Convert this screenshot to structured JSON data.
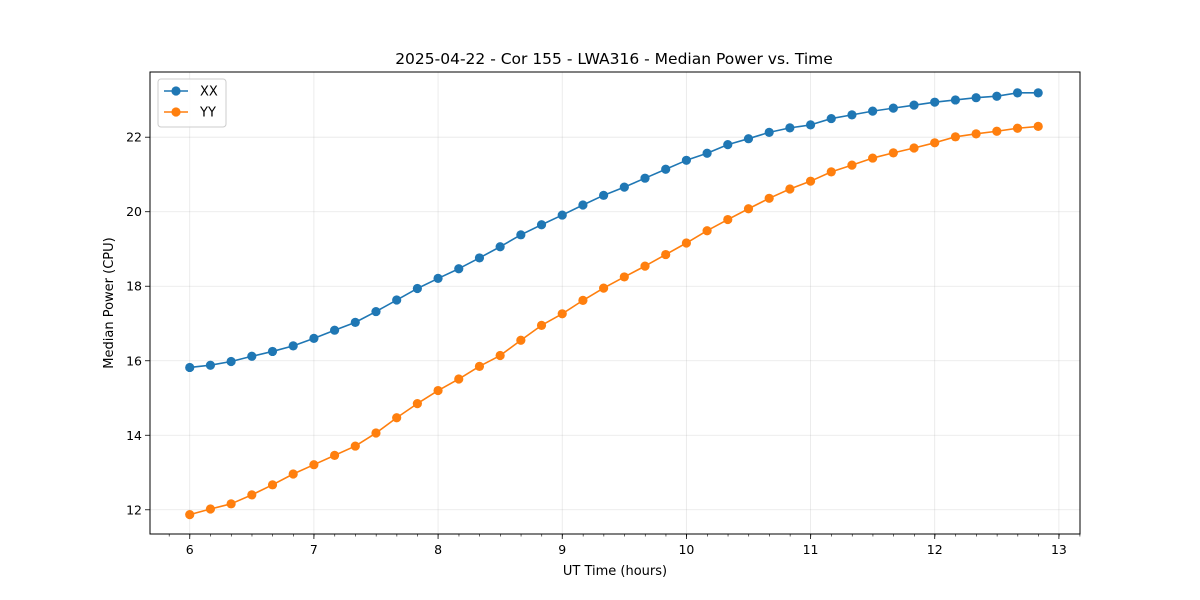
{
  "chart_data": {
    "type": "line",
    "title": "2025-04-22 - Cor 155 - LWA316 - Median Power vs. Time",
    "xlabel": "UT Time (hours)",
    "ylabel": "Median Power (CPU)",
    "xlim": [
      5.68,
      13.17
    ],
    "ylim": [
      11.35,
      23.75
    ],
    "xticks": [
      6,
      7,
      8,
      9,
      10,
      11,
      12,
      13
    ],
    "xticks_minor_step": 0.1667,
    "yticks": [
      12,
      14,
      16,
      18,
      20,
      22
    ],
    "grid": true,
    "legend_position": "top-left",
    "x": [
      6.0,
      6.1667,
      6.3333,
      6.5,
      6.6667,
      6.8333,
      7.0,
      7.1667,
      7.3333,
      7.5,
      7.6667,
      7.8333,
      8.0,
      8.1667,
      8.3333,
      8.5,
      8.6667,
      8.8333,
      9.0,
      9.1667,
      9.3333,
      9.5,
      9.6667,
      9.8333,
      10.0,
      10.1667,
      10.3333,
      10.5,
      10.6667,
      10.8333,
      11.0,
      11.1667,
      11.3333,
      11.5,
      11.6667,
      11.8333,
      12.0,
      12.1667,
      12.3333,
      12.5,
      12.6667,
      12.8333
    ],
    "series": [
      {
        "name": "XX",
        "color": "#1f77b4",
        "values": [
          15.82,
          15.88,
          15.98,
          16.12,
          16.25,
          16.4,
          16.6,
          16.82,
          17.03,
          17.32,
          17.63,
          17.94,
          18.21,
          18.47,
          18.76,
          19.06,
          19.38,
          19.65,
          19.91,
          20.18,
          20.44,
          20.66,
          20.9,
          21.14,
          21.38,
          21.57,
          21.8,
          21.96,
          22.13,
          22.25,
          22.33,
          22.5,
          22.6,
          22.7,
          22.78,
          22.86,
          22.94,
          23.0,
          23.06,
          23.1,
          23.19,
          23.19
        ]
      },
      {
        "name": "YY",
        "color": "#ff7f0e",
        "values": [
          11.87,
          12.02,
          12.16,
          12.4,
          12.67,
          12.96,
          13.21,
          13.46,
          13.71,
          14.06,
          14.47,
          14.85,
          15.2,
          15.51,
          15.85,
          16.14,
          16.55,
          16.95,
          17.26,
          17.62,
          17.95,
          18.25,
          18.54,
          18.85,
          19.16,
          19.49,
          19.79,
          20.08,
          20.36,
          20.61,
          20.82,
          21.07,
          21.25,
          21.44,
          21.58,
          21.71,
          21.85,
          22.01,
          22.09,
          22.16,
          22.24,
          22.29
        ]
      }
    ]
  }
}
